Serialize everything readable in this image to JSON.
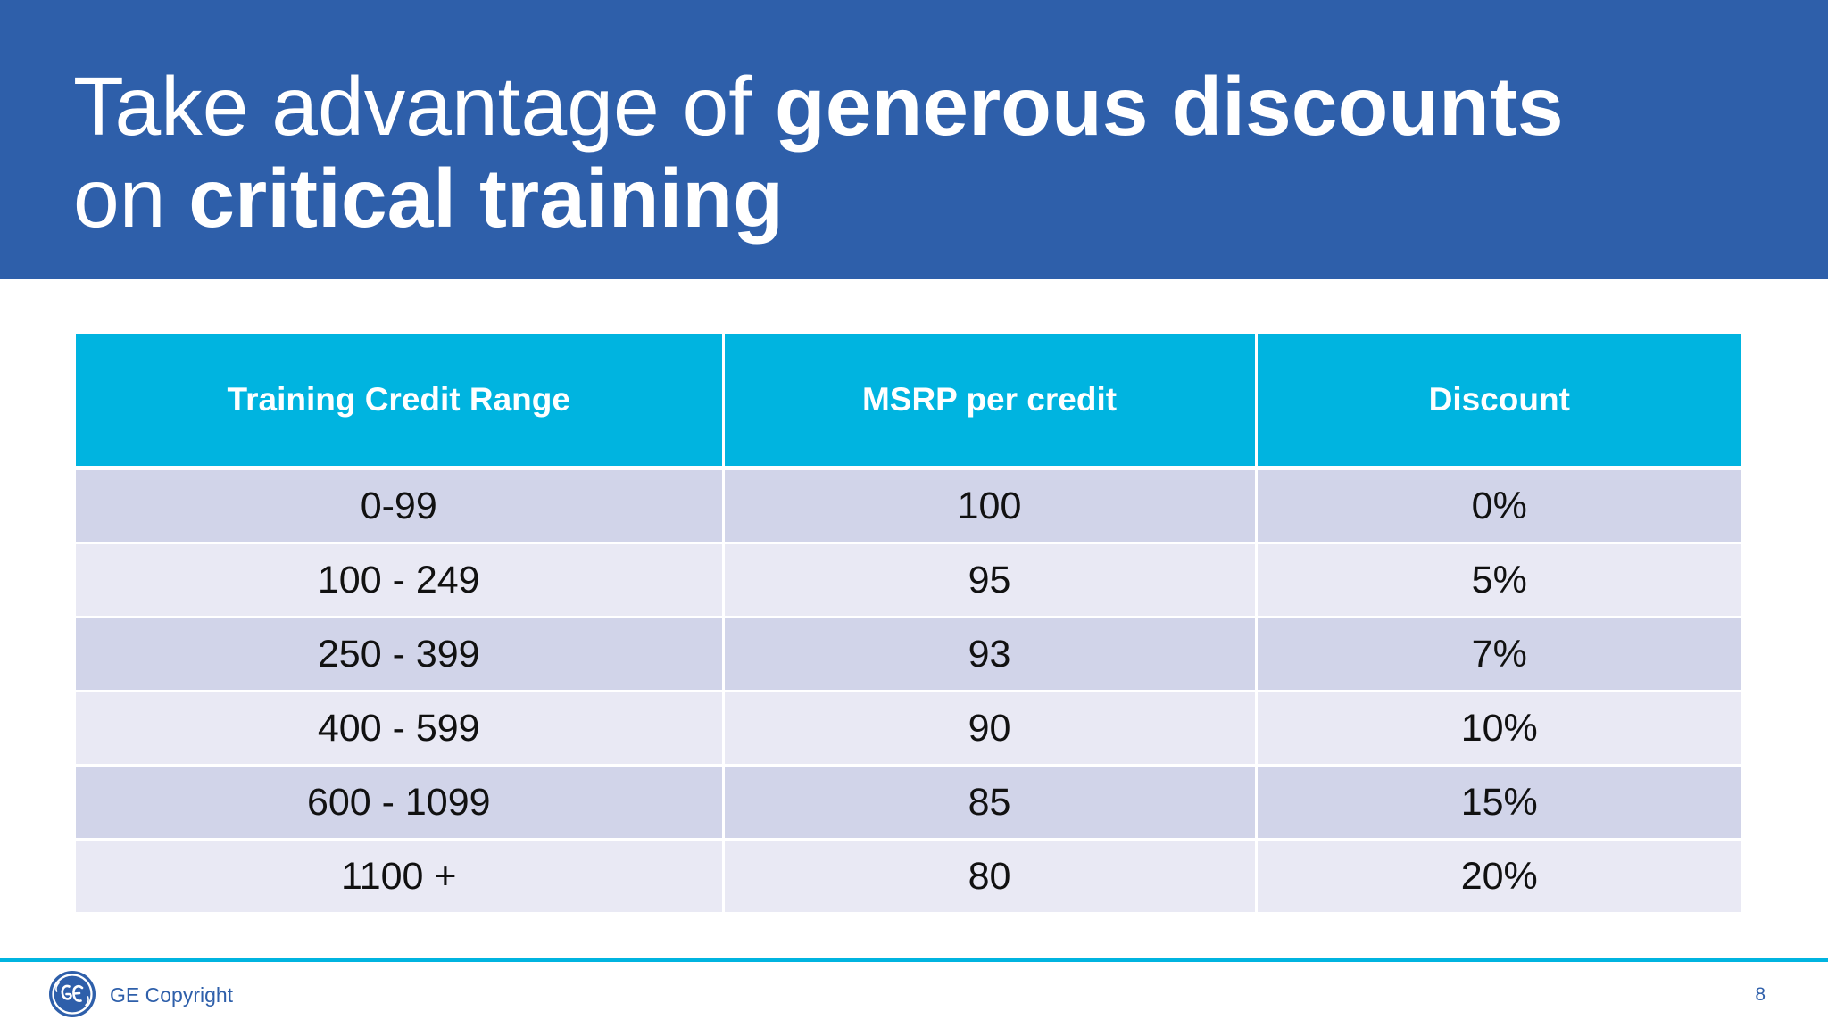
{
  "title": {
    "line1_regular": "Take advantage of ",
    "line1_bold": "generous discounts",
    "line2_regular": "on ",
    "line2_bold": "critical training"
  },
  "table": {
    "headers": [
      "Training Credit Range",
      "MSRP per credit",
      "Discount"
    ],
    "rows": [
      [
        "0-99",
        "100",
        "0%"
      ],
      [
        "100 - 249",
        "95",
        "5%"
      ],
      [
        "250 - 399",
        "93",
        "7%"
      ],
      [
        "400 - 599",
        "90",
        "10%"
      ],
      [
        "600 - 1099",
        "85",
        "15%"
      ],
      [
        "1100 +",
        "80",
        "20%"
      ]
    ]
  },
  "footer": {
    "logo_icon": "ge-logo-icon",
    "copyright": "GE Copyright",
    "page_number": "8"
  },
  "colors": {
    "title_bar": "#2e5faa",
    "table_header": "#00b4e0",
    "row_odd": "#d1d4e9",
    "row_even": "#e9e9f4"
  }
}
